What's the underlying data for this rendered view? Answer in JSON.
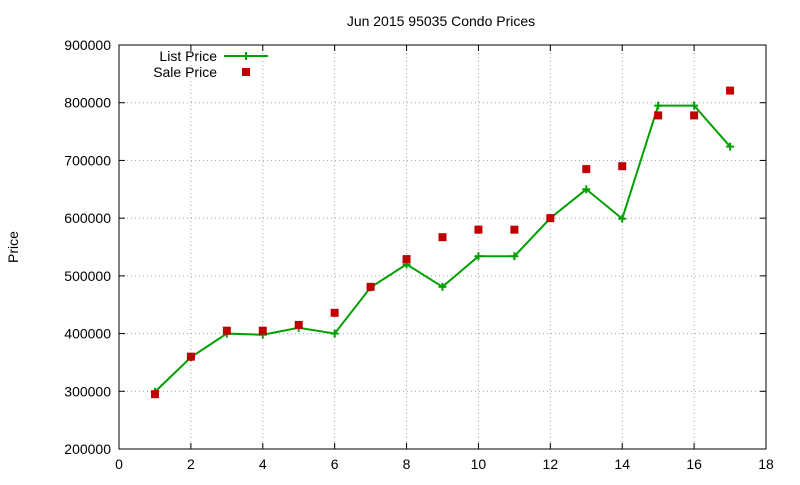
{
  "chart_data": {
    "type": "line",
    "title": "Jun 2015 95035 Condo Prices",
    "xlabel": "",
    "ylabel": "Price",
    "xlim": [
      0,
      18
    ],
    "ylim": [
      200000,
      900000
    ],
    "xticks": [
      0,
      2,
      4,
      6,
      8,
      10,
      12,
      14,
      16,
      18
    ],
    "yticks": [
      200000,
      300000,
      400000,
      500000,
      600000,
      700000,
      800000,
      900000
    ],
    "grid": true,
    "legend_position": "top-left",
    "series": [
      {
        "name": "List Price",
        "kind": "line-points",
        "color": "#00a000",
        "marker": "plus",
        "x": [
          1,
          2,
          3,
          4,
          5,
          6,
          7,
          8,
          9,
          10,
          11,
          12,
          13,
          14,
          15,
          16,
          17
        ],
        "y": [
          299000,
          359000,
          400000,
          398000,
          410000,
          400000,
          480000,
          520000,
          481000,
          534000,
          534000,
          600000,
          650000,
          599000,
          795000,
          795000,
          724000
        ]
      },
      {
        "name": "Sale Price",
        "kind": "points",
        "color": "#c00000",
        "marker": "square",
        "x": [
          1,
          2,
          3,
          4,
          5,
          6,
          7,
          8,
          9,
          10,
          11,
          12,
          13,
          14,
          15,
          16,
          17
        ],
        "y": [
          295000,
          360000,
          405000,
          405000,
          415000,
          436000,
          481000,
          529000,
          567000,
          580000,
          580000,
          600000,
          685000,
          690000,
          778000,
          778000,
          821000
        ]
      }
    ]
  }
}
